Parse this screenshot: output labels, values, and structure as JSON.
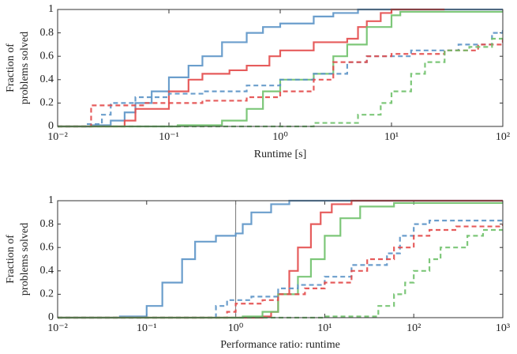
{
  "chart_data": [
    {
      "type": "line",
      "step": true,
      "xscale": "log",
      "xlim": [
        0.01,
        100
      ],
      "ylim": [
        0,
        1
      ],
      "xticks": [
        {
          "value": 0.01,
          "label": "10⁻²"
        },
        {
          "value": 0.1,
          "label": "10⁻¹"
        },
        {
          "value": 1,
          "label": "10⁰"
        },
        {
          "value": 10,
          "label": "10¹"
        },
        {
          "value": 100,
          "label": "10²"
        }
      ],
      "yticks": [
        0,
        0.2,
        0.4,
        0.6,
        0.8,
        1
      ],
      "xlabel": "Runtime [s]",
      "ylabel": [
        "Fraction of",
        "problems solved"
      ],
      "series": [
        {
          "color": "#5b93c7",
          "dash": false,
          "x": [
            0.01,
            0.02,
            0.03,
            0.04,
            0.05,
            0.07,
            0.1,
            0.15,
            0.2,
            0.3,
            0.5,
            0.7,
            1,
            2,
            3,
            5,
            100
          ],
          "values": [
            0,
            0.01,
            0.05,
            0.12,
            0.2,
            0.3,
            0.42,
            0.52,
            0.6,
            0.72,
            0.8,
            0.85,
            0.88,
            0.94,
            0.97,
            1,
            1
          ]
        },
        {
          "color": "#e34a4a",
          "dash": false,
          "x": [
            0.01,
            0.04,
            0.05,
            0.08,
            0.1,
            0.15,
            0.2,
            0.35,
            0.5,
            0.8,
            1,
            2,
            4,
            5,
            6,
            8,
            10,
            30
          ],
          "values": [
            0,
            0.05,
            0.15,
            0.15,
            0.3,
            0.4,
            0.45,
            0.48,
            0.52,
            0.6,
            0.65,
            0.72,
            0.75,
            0.85,
            0.9,
            0.97,
            1,
            1
          ]
        },
        {
          "color": "#6fc16a",
          "dash": false,
          "x": [
            0.01,
            0.12,
            0.3,
            0.5,
            0.7,
            1,
            2,
            3,
            4,
            6,
            10,
            12,
            100
          ],
          "values": [
            0,
            0.01,
            0.05,
            0.15,
            0.3,
            0.4,
            0.45,
            0.6,
            0.7,
            0.85,
            0.95,
            0.98,
            0.99
          ]
        },
        {
          "color": "#5b93c7",
          "dash": true,
          "x": [
            0.01,
            0.018,
            0.025,
            0.03,
            0.05,
            0.1,
            0.2,
            0.5,
            1,
            2,
            4,
            6,
            15,
            40,
            80,
            100
          ],
          "values": [
            0,
            0.02,
            0.1,
            0.2,
            0.25,
            0.28,
            0.3,
            0.35,
            0.4,
            0.45,
            0.55,
            0.6,
            0.65,
            0.7,
            0.8,
            0.83
          ]
        },
        {
          "color": "#e34a4a",
          "dash": true,
          "x": [
            0.01,
            0.02,
            0.06,
            0.2,
            0.5,
            1,
            2,
            3,
            6,
            10,
            30,
            60,
            100
          ],
          "values": [
            0,
            0.18,
            0.2,
            0.22,
            0.25,
            0.3,
            0.4,
            0.55,
            0.6,
            0.62,
            0.65,
            0.7,
            0.78
          ]
        },
        {
          "color": "#6fc16a",
          "dash": true,
          "x": [
            0.01,
            2,
            5,
            8,
            10,
            15,
            20,
            30,
            50,
            80,
            100
          ],
          "values": [
            0,
            0.03,
            0.1,
            0.2,
            0.3,
            0.45,
            0.55,
            0.65,
            0.68,
            0.75,
            0.78
          ]
        }
      ]
    },
    {
      "type": "line",
      "step": true,
      "xscale": "log",
      "xlim": [
        0.01,
        1000
      ],
      "ylim": [
        0,
        1
      ],
      "vline": 1,
      "xticks": [
        {
          "value": 0.01,
          "label": "10⁻²"
        },
        {
          "value": 0.1,
          "label": "10⁻¹"
        },
        {
          "value": 1,
          "label": "10⁰"
        },
        {
          "value": 10,
          "label": "10¹"
        },
        {
          "value": 100,
          "label": "10²"
        },
        {
          "value": 1000,
          "label": "10³"
        }
      ],
      "yticks": [
        0,
        0.2,
        0.4,
        0.6,
        0.8,
        1
      ],
      "xlabel": "Performance ratio: runtime",
      "ylabel": [
        "Fraction of",
        "problems solved"
      ],
      "series": [
        {
          "color": "#5b93c7",
          "dash": false,
          "x": [
            0.01,
            0.05,
            0.1,
            0.15,
            0.25,
            0.35,
            0.6,
            1,
            1.2,
            1.5,
            2.5,
            4,
            1000
          ],
          "values": [
            0,
            0.01,
            0.1,
            0.3,
            0.5,
            0.65,
            0.7,
            0.72,
            0.8,
            0.9,
            0.97,
            1,
            1
          ]
        },
        {
          "color": "#e34a4a",
          "dash": false,
          "x": [
            0.01,
            2,
            2.5,
            3,
            4,
            5,
            7,
            9,
            12,
            20,
            1000
          ],
          "values": [
            0,
            0.01,
            0.05,
            0.2,
            0.4,
            0.6,
            0.8,
            0.9,
            0.97,
            1,
            1
          ]
        },
        {
          "color": "#6fc16a",
          "dash": false,
          "x": [
            0.01,
            1.2,
            2,
            3,
            5,
            7,
            10,
            15,
            25,
            60,
            1000
          ],
          "values": [
            0,
            0.01,
            0.05,
            0.2,
            0.35,
            0.5,
            0.7,
            0.85,
            0.95,
            0.98,
            0.99
          ]
        },
        {
          "color": "#5b93c7",
          "dash": true,
          "x": [
            0.01,
            0.6,
            0.8,
            1.5,
            3,
            5,
            10,
            20,
            50,
            70,
            100,
            150,
            1000
          ],
          "values": [
            0,
            0.1,
            0.15,
            0.18,
            0.25,
            0.28,
            0.35,
            0.45,
            0.55,
            0.7,
            0.8,
            0.83,
            0.83
          ]
        },
        {
          "color": "#e34a4a",
          "dash": true,
          "x": [
            0.01,
            0.8,
            1,
            2,
            3,
            6,
            10,
            20,
            30,
            60,
            100,
            150,
            300,
            1000
          ],
          "values": [
            0,
            0.05,
            0.12,
            0.15,
            0.2,
            0.25,
            0.3,
            0.4,
            0.5,
            0.6,
            0.7,
            0.75,
            0.78,
            0.8
          ]
        },
        {
          "color": "#6fc16a",
          "dash": true,
          "x": [
            0.01,
            10,
            40,
            60,
            80,
            100,
            150,
            200,
            400,
            600,
            1000
          ],
          "values": [
            0,
            0.01,
            0.1,
            0.2,
            0.3,
            0.4,
            0.5,
            0.6,
            0.7,
            0.75,
            0.78
          ]
        }
      ]
    }
  ]
}
